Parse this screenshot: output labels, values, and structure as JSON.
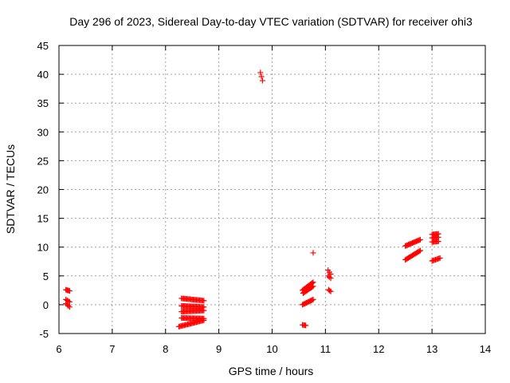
{
  "chart_data": {
    "type": "scatter",
    "title": "Day 296 of 2023, Sidereal Day-to-day VTEC variation (SDTVAR) for receiver ohi3",
    "xlabel": "GPS time / hours",
    "ylabel": "SDTVAR / TECUs",
    "xlim": [
      6,
      14
    ],
    "ylim": [
      -5,
      45
    ],
    "xticks": [
      6,
      7,
      8,
      9,
      10,
      11,
      12,
      13,
      14
    ],
    "yticks": [
      -5,
      0,
      5,
      10,
      15,
      20,
      25,
      30,
      35,
      40,
      45
    ],
    "grid": true,
    "marker": "plus",
    "color": "#ff0000",
    "segments": [
      {
        "x0": 6.13,
        "x1": 6.2,
        "y0": 2.6,
        "y1": 2.4,
        "n": 5
      },
      {
        "x0": 6.13,
        "x1": 6.2,
        "y0": 0.9,
        "y1": 0.5,
        "n": 4
      },
      {
        "x0": 6.13,
        "x1": 6.2,
        "y0": 0.2,
        "y1": -0.4,
        "n": 4
      },
      {
        "x0": 8.3,
        "x1": 8.72,
        "y0": 1.1,
        "y1": 0.7,
        "n": 22
      },
      {
        "x0": 8.3,
        "x1": 8.72,
        "y0": -0.2,
        "y1": -0.4,
        "n": 22
      },
      {
        "x0": 8.3,
        "x1": 8.72,
        "y0": -1.2,
        "y1": -1.0,
        "n": 22
      },
      {
        "x0": 8.3,
        "x1": 8.72,
        "y0": -2.3,
        "y1": -2.4,
        "n": 22
      },
      {
        "x0": 8.25,
        "x1": 8.72,
        "y0": -3.8,
        "y1": -2.7,
        "n": 24
      },
      {
        "x0": 9.78,
        "x1": 9.82,
        "y0": 40.3,
        "y1": 38.9,
        "n": 3
      },
      {
        "x0": 10.57,
        "x1": 10.77,
        "y0": 2.5,
        "y1": 3.9,
        "n": 12
      },
      {
        "x0": 10.58,
        "x1": 10.77,
        "y0": 2.0,
        "y1": 3.2,
        "n": 11
      },
      {
        "x0": 10.57,
        "x1": 10.77,
        "y0": 0.0,
        "y1": 0.9,
        "n": 12
      },
      {
        "x0": 10.57,
        "x1": 10.63,
        "y0": -3.5,
        "y1": -3.6,
        "n": 4
      },
      {
        "x0": 10.77,
        "x1": 10.77,
        "y0": 9.0,
        "y1": 9.0,
        "n": 1
      },
      {
        "x0": 11.05,
        "x1": 11.1,
        "y0": 6.0,
        "y1": 5.3,
        "n": 3
      },
      {
        "x0": 11.05,
        "x1": 11.1,
        "y0": 5.0,
        "y1": 4.6,
        "n": 3
      },
      {
        "x0": 11.06,
        "x1": 11.1,
        "y0": 2.6,
        "y1": 2.3,
        "n": 3
      },
      {
        "x0": 12.5,
        "x1": 12.78,
        "y0": 10.2,
        "y1": 11.3,
        "n": 16
      },
      {
        "x0": 12.5,
        "x1": 12.78,
        "y0": 7.8,
        "y1": 9.4,
        "n": 16
      },
      {
        "x0": 13.0,
        "x1": 13.12,
        "y0": 12.2,
        "y1": 12.3,
        "n": 7
      },
      {
        "x0": 13.0,
        "x1": 13.12,
        "y0": 11.6,
        "y1": 11.7,
        "n": 7
      },
      {
        "x0": 13.0,
        "x1": 13.12,
        "y0": 10.9,
        "y1": 11.0,
        "n": 7
      },
      {
        "x0": 13.0,
        "x1": 13.15,
        "y0": 7.6,
        "y1": 8.1,
        "n": 8
      }
    ]
  }
}
